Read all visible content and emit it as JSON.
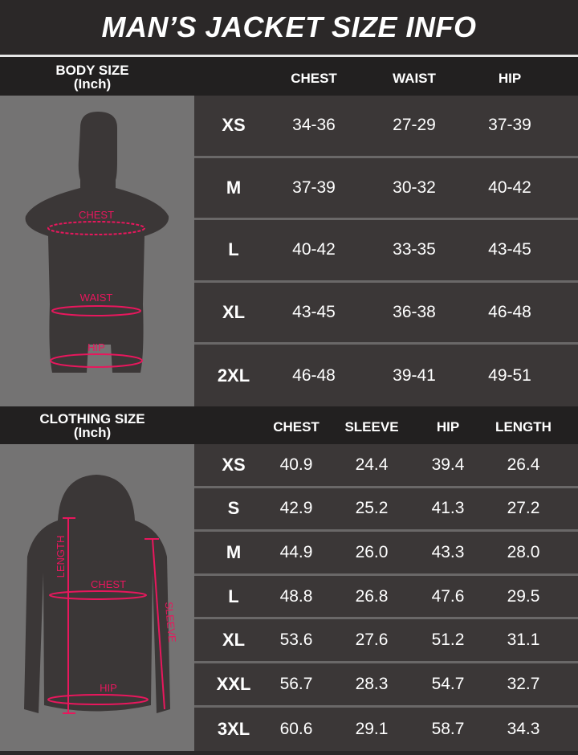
{
  "title": "MAN’S JACKET SIZE INFO",
  "body": {
    "label": "BODY SIZE",
    "unit": "(Inch)",
    "columns": [
      "CHEST",
      "WAIST",
      "HIP"
    ],
    "figure_labels": {
      "chest": "CHEST",
      "waist": "WAIST",
      "hip": "HIP"
    },
    "rows": [
      {
        "size": "XS",
        "chest": "34-36",
        "waist": "27-29",
        "hip": "37-39"
      },
      {
        "size": "M",
        "chest": "37-39",
        "waist": "30-32",
        "hip": "40-42"
      },
      {
        "size": "L",
        "chest": "40-42",
        "waist": "33-35",
        "hip": "43-45"
      },
      {
        "size": "XL",
        "chest": "43-45",
        "waist": "36-38",
        "hip": "46-48"
      },
      {
        "size": "2XL",
        "chest": "46-48",
        "waist": "39-41",
        "hip": "49-51"
      }
    ]
  },
  "clothing": {
    "label": "CLOTHING SIZE",
    "unit": "(Inch)",
    "columns": [
      "CHEST",
      "SLEEVE",
      "HIP",
      "LENGTH"
    ],
    "figure_labels": {
      "length": "LENGTH",
      "chest": "CHEST",
      "sleeve": "SLEEVE",
      "hip": "HIP"
    },
    "rows": [
      {
        "size": "XS",
        "chest": "40.9",
        "sleeve": "24.4",
        "hip": "39.4",
        "length": "26.4"
      },
      {
        "size": "S",
        "chest": "42.9",
        "sleeve": "25.2",
        "hip": "41.3",
        "length": "27.2"
      },
      {
        "size": "M",
        "chest": "44.9",
        "sleeve": "26.0",
        "hip": "43.3",
        "length": "28.0"
      },
      {
        "size": "L",
        "chest": "48.8",
        "sleeve": "26.8",
        "hip": "47.6",
        "length": "29.5"
      },
      {
        "size": "XL",
        "chest": "53.6",
        "sleeve": "27.6",
        "hip": "51.2",
        "length": "31.1"
      },
      {
        "size": "XXL",
        "chest": "56.7",
        "sleeve": "28.3",
        "hip": "54.7",
        "length": "32.7"
      },
      {
        "size": "3XL",
        "chest": "60.6",
        "sleeve": "29.1",
        "hip": "58.7",
        "length": "34.3"
      }
    ]
  },
  "colors": {
    "accent": "#e8175d",
    "panel": "#747373",
    "cell": "#3b3737"
  }
}
